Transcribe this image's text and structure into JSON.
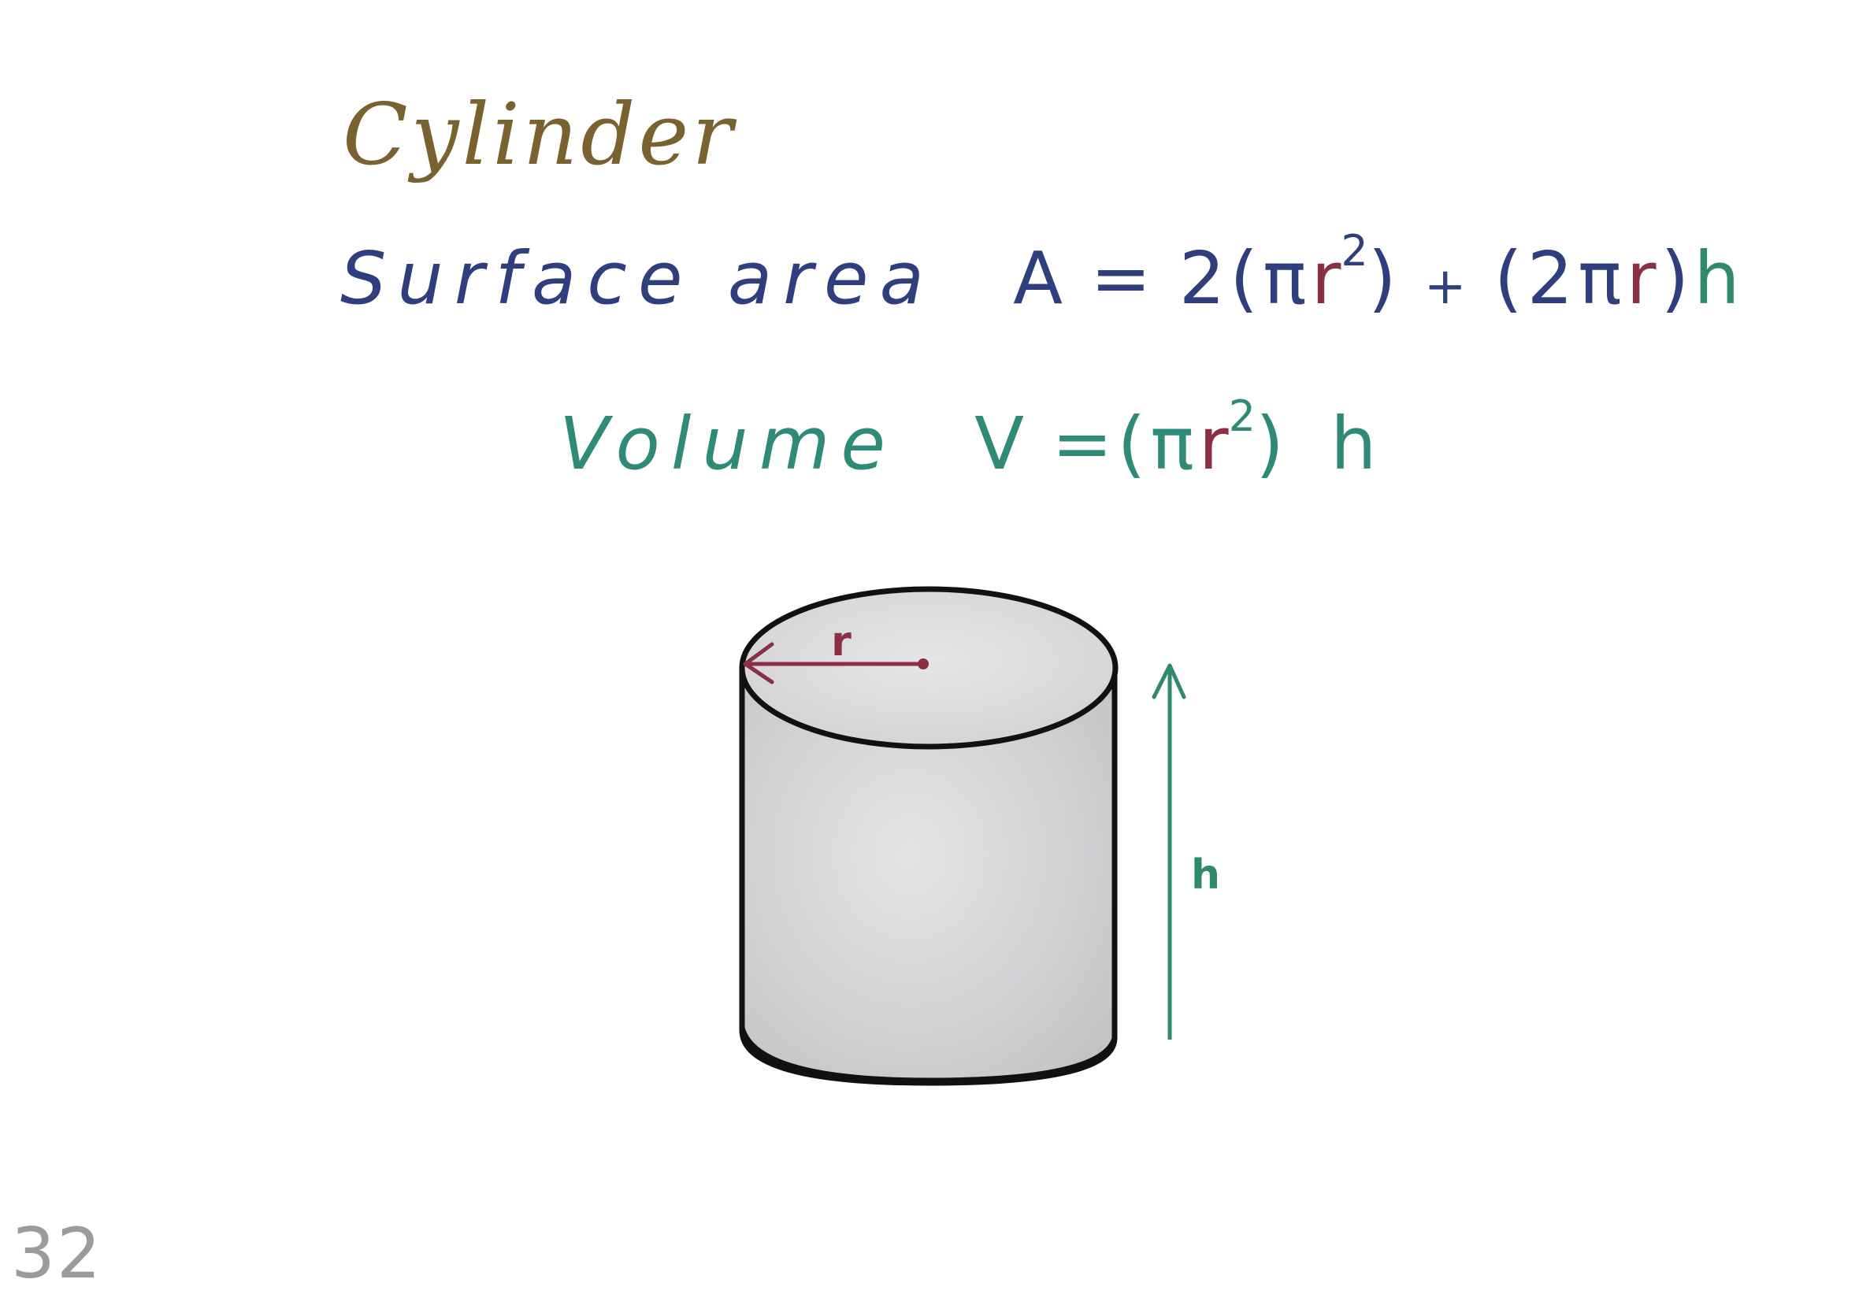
{
  "title": "Cylinder",
  "surface_area": {
    "label": "Surface area",
    "lhs": "A",
    "eq": "=",
    "coef": "2",
    "open1": "(",
    "pi1": "π",
    "r1": "r",
    "exp1": "2",
    "close1": ")",
    "plus": "+",
    "open2": "(",
    "coef2": "2",
    "pi2": "π",
    "r2": "r",
    "close2": ")",
    "h": "h"
  },
  "volume": {
    "label": "Volume",
    "lhs": "V",
    "eq": "=",
    "open": "(",
    "pi": "π",
    "r": "r",
    "exp": "2",
    "close": ")",
    "h": "h"
  },
  "diagram": {
    "radius_label": "r",
    "height_label": "h"
  },
  "page_number": "32",
  "colors": {
    "title": "#7a6230",
    "surface_area": "#2f3f7d",
    "volume": "#2f8a78",
    "radius": "#8a2f44",
    "height": "#2f8a6a",
    "outline": "#111111",
    "cylinder_fill": "#d9d9db"
  }
}
